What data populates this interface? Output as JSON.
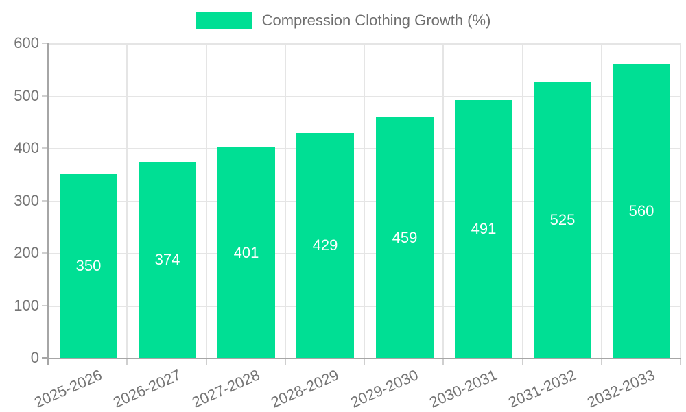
{
  "chart_data": {
    "type": "bar",
    "title": "",
    "legend": "Compression Clothing Growth (%)",
    "legend_position": "top",
    "categories": [
      "2025-2026",
      "2026-2027",
      "2027-2028",
      "2028-2029",
      "2029-2030",
      "2030-2031",
      "2031-2032",
      "2032-2033"
    ],
    "series": [
      {
        "name": "Compression Clothing Growth (%)",
        "values": [
          350,
          374,
          401,
          429,
          459,
          491,
          525,
          560
        ]
      }
    ],
    "values": [
      350,
      374,
      401,
      429,
      459,
      491,
      525,
      560
    ],
    "xlabel": "",
    "ylabel": "",
    "ylim": [
      0,
      600
    ],
    "yticks": [
      0,
      100,
      200,
      300,
      400,
      500,
      600
    ],
    "grid": true,
    "x_label_rotation_deg": -24,
    "colors": {
      "bar": "#00DF94",
      "bar_label": "#FFFFFF",
      "axis_line": "#A6A6A6",
      "grid_line": "#E5E5E5",
      "tick_mark": "#CFCFCF",
      "axis_text": "#757575",
      "legend_text": "#6E6E6E",
      "background": "#FFFFFF"
    }
  }
}
